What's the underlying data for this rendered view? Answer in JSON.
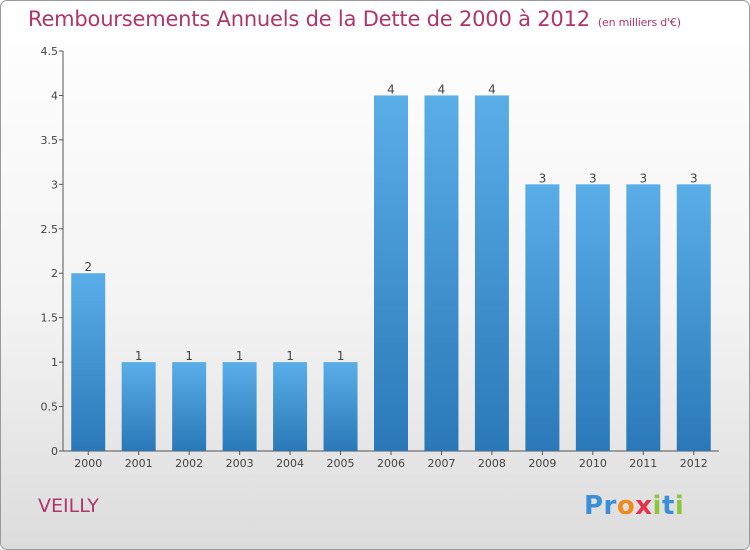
{
  "title": "Remboursements Annuels de la Dette de 2000 à 2012",
  "unit_note": "(en milliers d'€)",
  "commune": "VEILLY",
  "logo_text": "Proxiti",
  "colors": {
    "title": "#b0356a",
    "bar_top": "#5aaee8",
    "bar_bottom": "#2a78b8",
    "axis": "#555555"
  },
  "chart_data": {
    "type": "bar",
    "categories": [
      "2000",
      "2001",
      "2002",
      "2003",
      "2004",
      "2005",
      "2006",
      "2007",
      "2008",
      "2009",
      "2010",
      "2011",
      "2012"
    ],
    "values": [
      2,
      1,
      1,
      1,
      1,
      1,
      4,
      4,
      4,
      3,
      3,
      3,
      3
    ],
    "value_labels": [
      "2",
      "1",
      "1",
      "1",
      "1",
      "1",
      "4",
      "4",
      "4",
      "3",
      "3",
      "3",
      "3"
    ],
    "y_ticks": [
      0,
      0.5,
      1,
      1.5,
      2,
      2.5,
      3,
      3.5,
      4,
      4.5
    ],
    "y_tick_labels": [
      "0",
      "0.5",
      "1",
      "1.5",
      "2",
      "2.5",
      "3",
      "3.5",
      "4",
      "4.5"
    ],
    "ylim": [
      0,
      4.5
    ],
    "grid": false,
    "legend": "none"
  }
}
